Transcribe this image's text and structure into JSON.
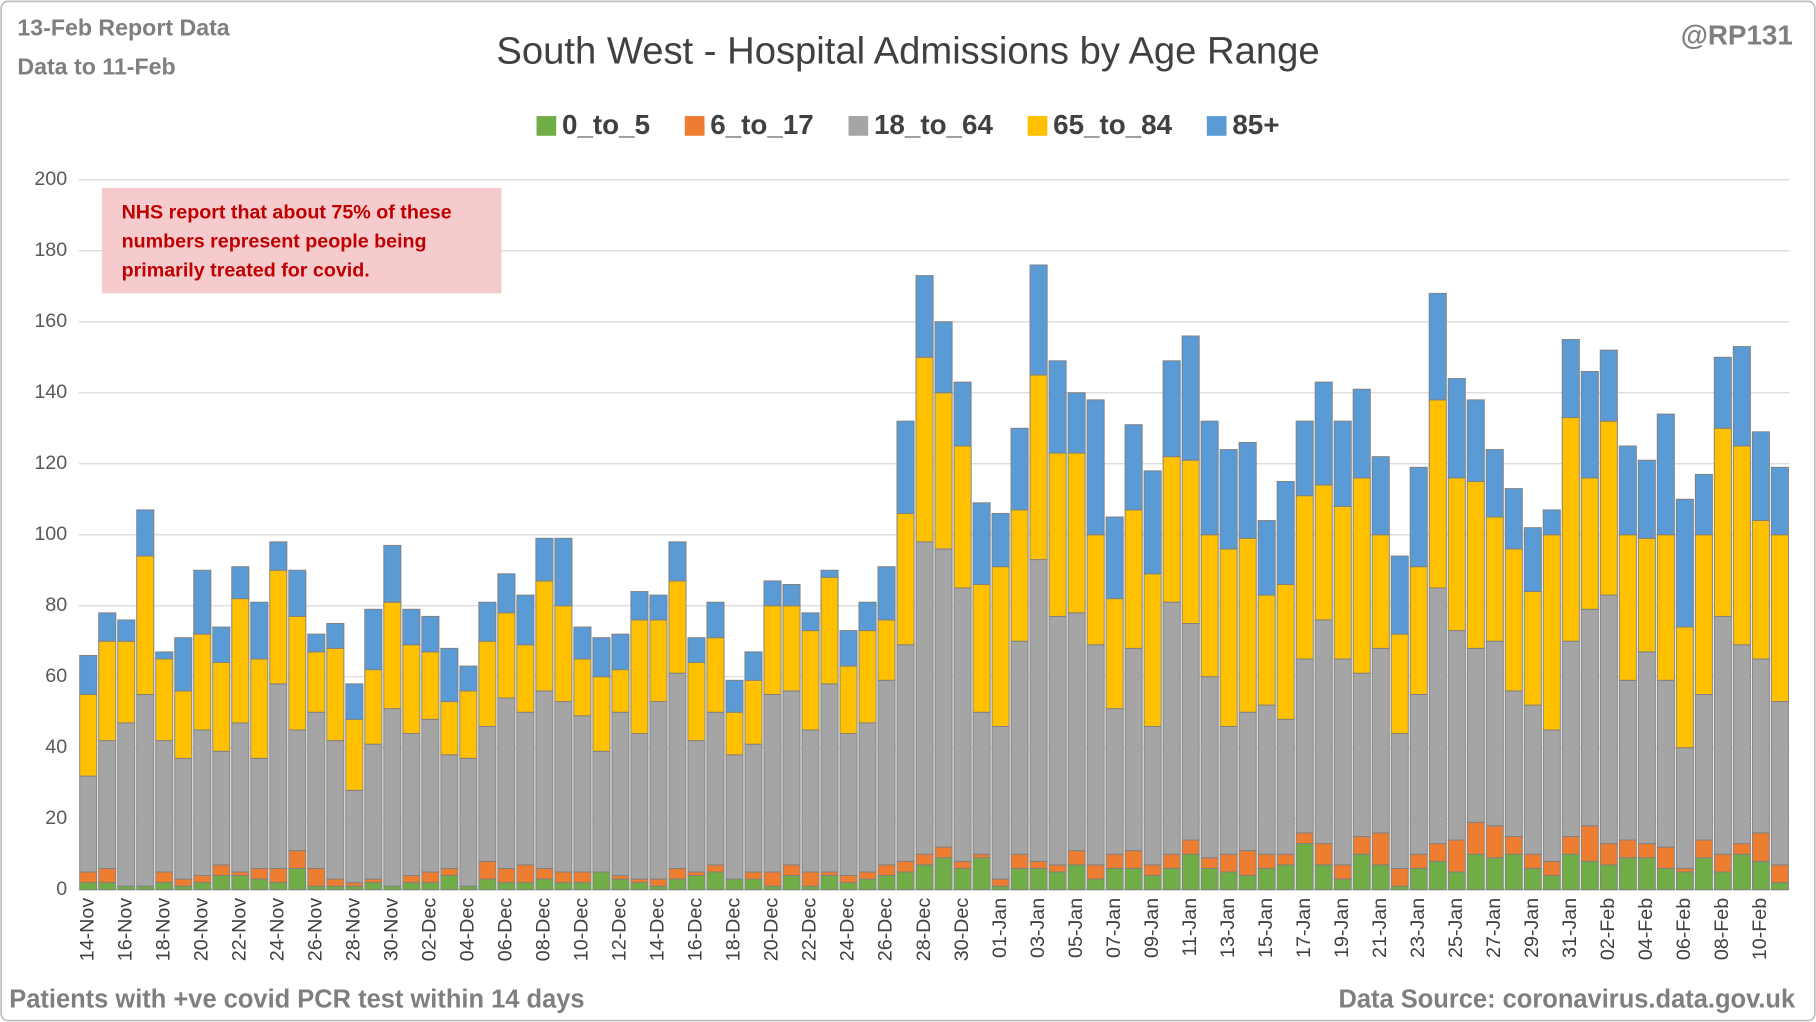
{
  "corner_notes": [
    "13-Feb Report Data",
    "Data to 11-Feb"
  ],
  "handle": "@RP131",
  "footer_left": "Patients with  +ve covid PCR test within 14 days",
  "footer_right": "Data Source: coronavirus.data.gov.uk",
  "chart_data": {
    "type": "stacked_bar",
    "title": "South West - Hospital Admissions by Age Range",
    "annotation": [
      "NHS report that about 75% of these",
      "numbers represent people being",
      "primarily treated for covid."
    ],
    "categories": [
      "14-Nov",
      null,
      "16-Nov",
      null,
      "18-Nov",
      null,
      "20-Nov",
      null,
      "22-Nov",
      null,
      "24-Nov",
      null,
      "26-Nov",
      null,
      "28-Nov",
      null,
      "30-Nov",
      null,
      "02-Dec",
      null,
      "04-Dec",
      null,
      "06-Dec",
      null,
      "08-Dec",
      null,
      "10-Dec",
      null,
      "12-Dec",
      null,
      "14-Dec",
      null,
      "16-Dec",
      null,
      "18-Dec",
      null,
      "20-Dec",
      null,
      "22-Dec",
      null,
      "24-Dec",
      null,
      "26-Dec",
      null,
      "28-Dec",
      null,
      "30-Dec",
      null,
      "01-Jan",
      null,
      "03-Jan",
      null,
      "05-Jan",
      null,
      "07-Jan",
      null,
      "09-Jan",
      null,
      "11-Jan",
      null,
      "13-Jan",
      null,
      "15-Jan",
      null,
      "17-Jan",
      null,
      "19-Jan",
      null,
      "21-Jan",
      null,
      "23-Jan",
      null,
      "25-Jan",
      null,
      "27-Jan",
      null,
      "29-Jan",
      null,
      "31-Jan",
      null,
      "02-Feb",
      null,
      "04-Feb",
      null,
      "06-Feb",
      null,
      "08-Feb",
      null,
      "10-Feb",
      null
    ],
    "series": [
      {
        "name": "0_to_5",
        "color": "#70ad47",
        "values": [
          2,
          2,
          1,
          1,
          2,
          1,
          2,
          4,
          4,
          3,
          2,
          6,
          1,
          1,
          1,
          2,
          1,
          2,
          2,
          4,
          1,
          3,
          2,
          2,
          3,
          2,
          2,
          5,
          3,
          2,
          1,
          3,
          4,
          5,
          3,
          3,
          1,
          4,
          1,
          4,
          2,
          3,
          4,
          5,
          7,
          9,
          6,
          9,
          1,
          6,
          6,
          5,
          7,
          3,
          6,
          6,
          4,
          6,
          10,
          6,
          5,
          4,
          6,
          7,
          13,
          7,
          3,
          10,
          7,
          1,
          6,
          8,
          5,
          10,
          9,
          10,
          6,
          4,
          10,
          8,
          7,
          9,
          9,
          6,
          5,
          9,
          5,
          10,
          8,
          2
        ]
      },
      {
        "name": "6_to_17",
        "color": "#ed7d31",
        "values": [
          3,
          4,
          0,
          0,
          3,
          2,
          2,
          3,
          1,
          3,
          4,
          5,
          5,
          2,
          1,
          1,
          0,
          2,
          3,
          2,
          0,
          5,
          4,
          5,
          3,
          3,
          3,
          0,
          1,
          1,
          2,
          3,
          1,
          2,
          0,
          2,
          4,
          3,
          4,
          1,
          2,
          2,
          3,
          3,
          3,
          3,
          2,
          1,
          2,
          4,
          2,
          2,
          4,
          4,
          4,
          5,
          3,
          4,
          4,
          3,
          5,
          7,
          4,
          3,
          3,
          6,
          4,
          5,
          9,
          5,
          4,
          5,
          9,
          9,
          9,
          5,
          4,
          4,
          5,
          10,
          6,
          5,
          4,
          6,
          1,
          5,
          5,
          3,
          8,
          5
        ]
      },
      {
        "name": "18_to_64",
        "color": "#a5a5a5",
        "values": [
          27,
          36,
          46,
          54,
          37,
          34,
          41,
          32,
          42,
          31,
          52,
          34,
          44,
          39,
          26,
          38,
          50,
          40,
          43,
          32,
          36,
          38,
          48,
          43,
          50,
          48,
          44,
          34,
          46,
          41,
          50,
          55,
          37,
          43,
          35,
          36,
          50,
          49,
          40,
          53,
          40,
          42,
          52,
          61,
          88,
          84,
          77,
          40,
          43,
          60,
          85,
          70,
          67,
          62,
          41,
          57,
          39,
          71,
          61,
          51,
          36,
          39,
          42,
          38,
          49,
          63,
          58,
          46,
          52,
          38,
          45,
          72,
          59,
          49,
          52,
          41,
          42,
          37,
          55,
          61,
          70,
          45,
          54,
          47,
          34,
          41,
          67,
          56,
          49,
          46
        ]
      },
      {
        "name": "65_to_84",
        "color": "#ffc000",
        "values": [
          23,
          28,
          23,
          39,
          23,
          19,
          27,
          25,
          35,
          28,
          32,
          32,
          17,
          26,
          20,
          21,
          30,
          25,
          19,
          15,
          19,
          24,
          24,
          19,
          31,
          27,
          16,
          21,
          12,
          32,
          23,
          26,
          22,
          21,
          12,
          18,
          25,
          24,
          28,
          30,
          19,
          26,
          17,
          37,
          52,
          44,
          40,
          36,
          45,
          37,
          52,
          46,
          45,
          31,
          31,
          39,
          43,
          41,
          46,
          40,
          50,
          49,
          31,
          38,
          46,
          38,
          43,
          55,
          32,
          28,
          36,
          53,
          43,
          47,
          35,
          40,
          32,
          55,
          63,
          37,
          49,
          41,
          32,
          41,
          34,
          45,
          53,
          56,
          39,
          47
        ]
      },
      {
        "name": "85+",
        "color": "#5b9bd5",
        "values": [
          11,
          8,
          6,
          13,
          2,
          15,
          18,
          10,
          9,
          16,
          8,
          13,
          5,
          7,
          10,
          17,
          16,
          10,
          10,
          15,
          7,
          11,
          11,
          14,
          12,
          19,
          9,
          11,
          10,
          8,
          7,
          11,
          7,
          10,
          9,
          8,
          7,
          6,
          5,
          2,
          10,
          8,
          15,
          26,
          23,
          20,
          18,
          23,
          15,
          23,
          31,
          26,
          17,
          38,
          23,
          24,
          29,
          27,
          35,
          32,
          28,
          27,
          21,
          29,
          21,
          29,
          24,
          25,
          22,
          22,
          28,
          30,
          28,
          23,
          19,
          17,
          18,
          7,
          22,
          30,
          20,
          25,
          22,
          34,
          36,
          17,
          20,
          28,
          25,
          19
        ]
      }
    ],
    "ylim": [
      0,
      200
    ],
    "yticks": [
      0,
      20,
      40,
      60,
      80,
      100,
      120,
      140,
      160,
      180,
      200
    ],
    "grid": true,
    "legend": "top"
  }
}
